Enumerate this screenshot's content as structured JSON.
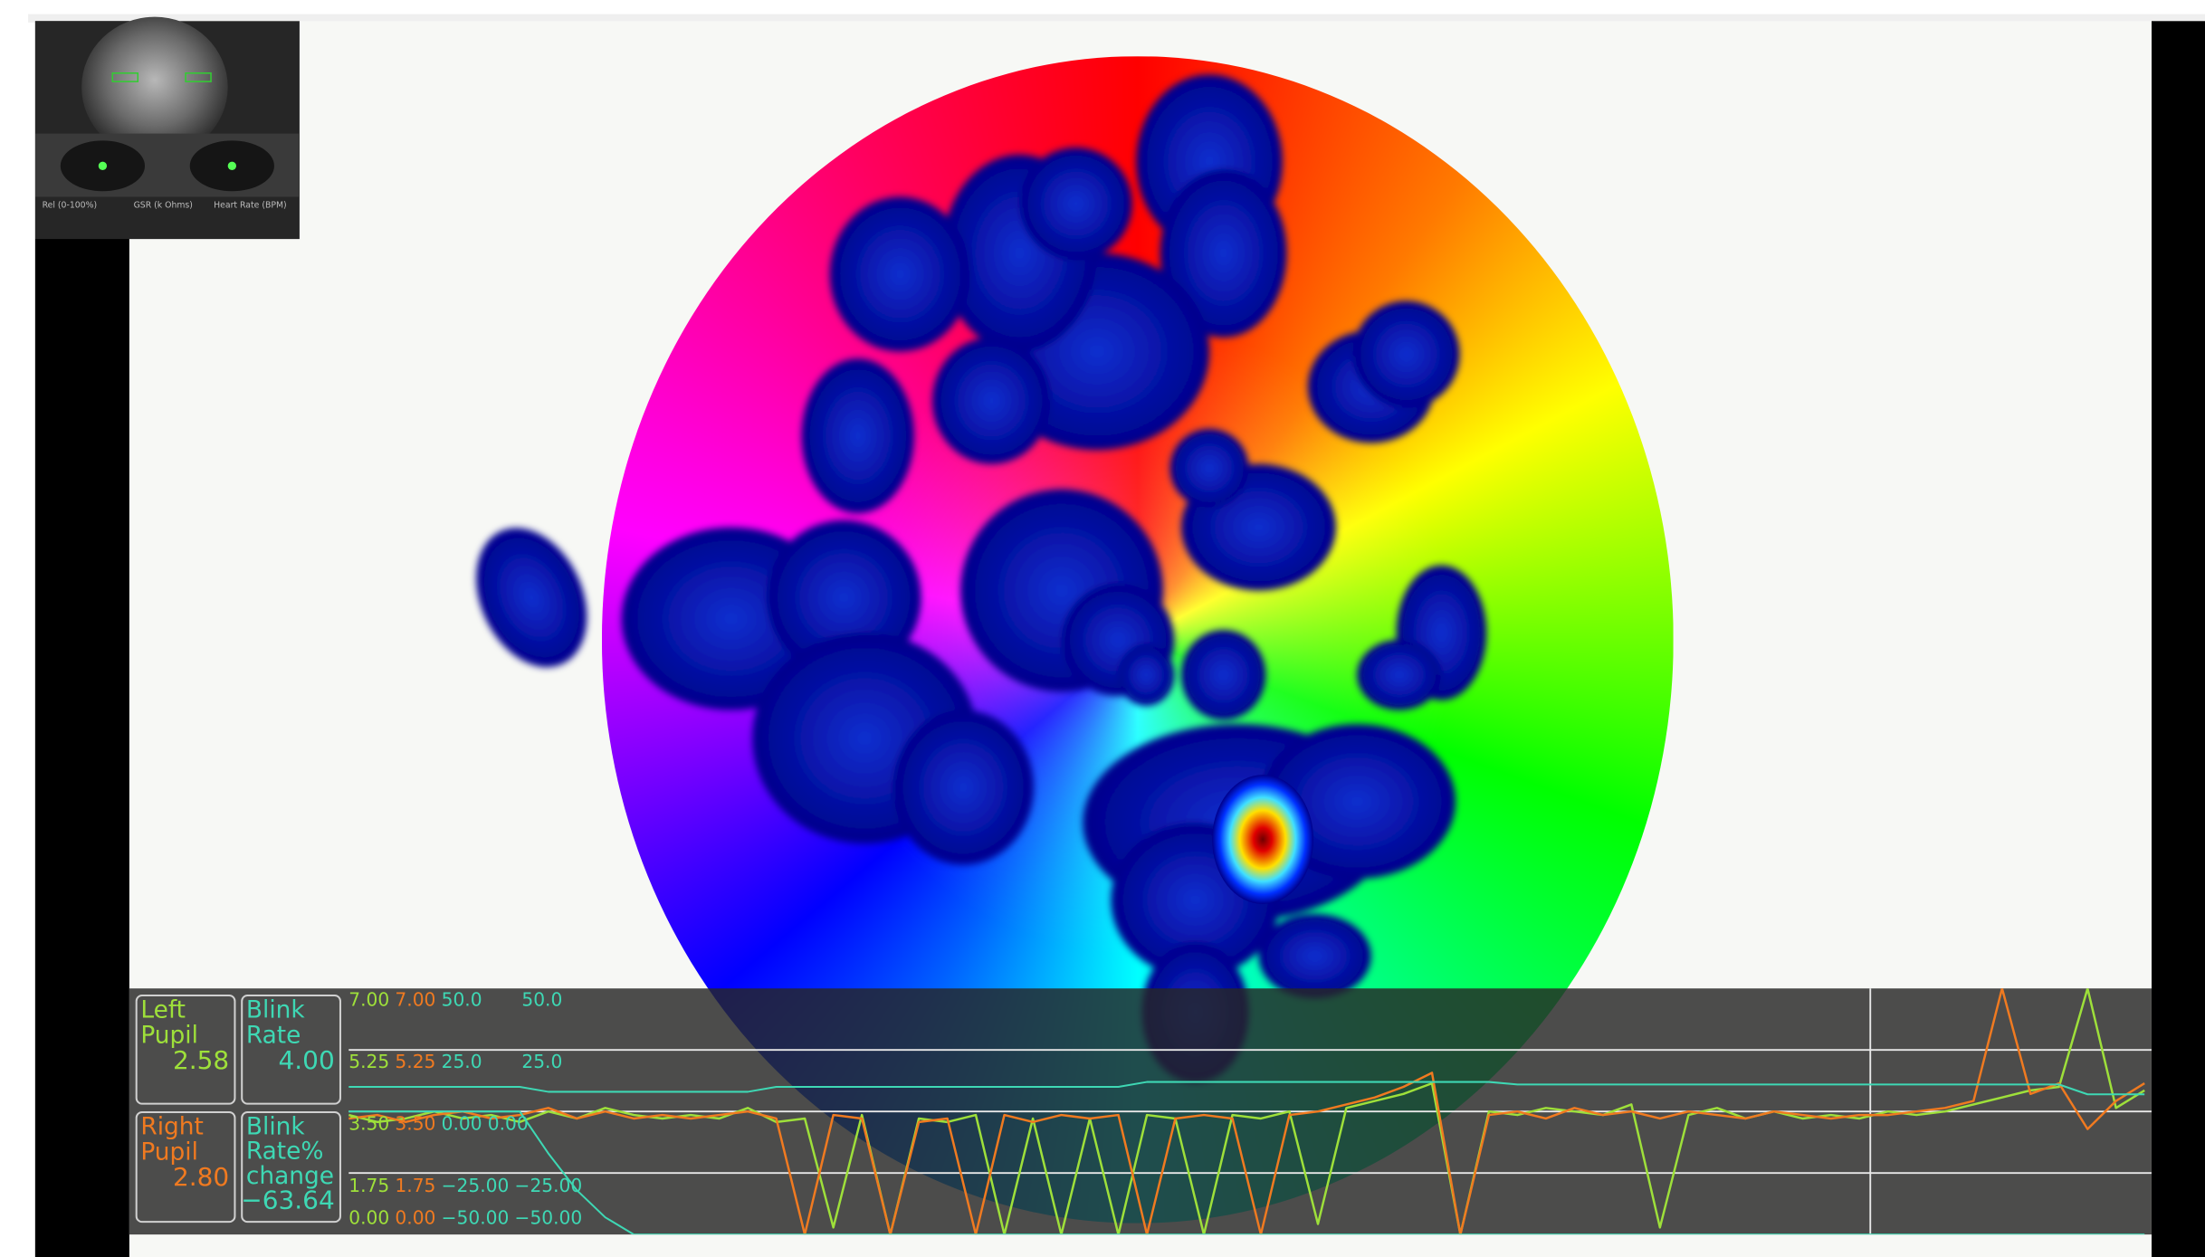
{
  "thumbnail": {
    "labels": [
      "Rel (0-100%)",
      "GSR (k Ohms)",
      "Heart Rate (BPM)"
    ]
  },
  "readouts": [
    {
      "lines": [
        "Left",
        "Pupil"
      ],
      "value": "2.58",
      "color": "#9ee03a"
    },
    {
      "lines": [
        "Blink",
        "Rate"
      ],
      "value": "4.00",
      "color": "#3ed8b4"
    },
    {
      "lines": [
        "Right",
        "Pupil"
      ],
      "value": "2.80",
      "color": "#f07a20"
    },
    {
      "lines": [
        "Blink",
        "Rate%",
        "change"
      ],
      "value": "−63.64",
      "color": "#3ed8b4"
    }
  ],
  "graph": {
    "ylim": [
      0,
      7
    ],
    "y2lim": [
      -50,
      50
    ],
    "yticks": [
      {
        "value": 7,
        "label": "7.00"
      },
      {
        "value": 5.25,
        "label": "5.25"
      },
      {
        "value": 3.5,
        "label": "3.50"
      },
      {
        "value": 1.75,
        "label": "1.75"
      },
      {
        "value": 0,
        "label": "0.00"
      }
    ],
    "y2ticks": [
      {
        "value": 50,
        "label": "50.0"
      },
      {
        "value": 25,
        "label": "25.0"
      },
      {
        "value": 0,
        "label": "0.00"
      },
      {
        "value": -25,
        "label": "−25.00"
      },
      {
        "value": -50,
        "label": "−50.00"
      }
    ],
    "series": [
      {
        "color": "#9ee03a",
        "axis": "y",
        "values": [
          3.4,
          3.2,
          3.3,
          3.5,
          3.3,
          3.4,
          3.2,
          3.5,
          3.3,
          3.6,
          3.4,
          3.3,
          3.4,
          3.3,
          3.6,
          3.2,
          3.3,
          0.2,
          3.4,
          0.0,
          3.3,
          3.2,
          3.4,
          0.0,
          3.3,
          0.0,
          3.3,
          0.0,
          3.4,
          3.3,
          0.0,
          3.4,
          3.3,
          3.5,
          0.3,
          3.6,
          3.8,
          4.0,
          4.3,
          0.0,
          3.5,
          3.4,
          3.6,
          3.5,
          3.4,
          3.7,
          0.2,
          3.4,
          3.6,
          3.3,
          3.5,
          3.3,
          3.4,
          3.3,
          3.5,
          3.4,
          3.5,
          3.7,
          3.9,
          4.1,
          4.2,
          7.0,
          3.6,
          4.1
        ]
      },
      {
        "color": "#f07a20",
        "axis": "y",
        "values": [
          3.3,
          3.4,
          3.2,
          3.4,
          3.5,
          3.3,
          3.4,
          3.6,
          3.3,
          3.5,
          3.3,
          3.4,
          3.3,
          3.4,
          3.5,
          3.3,
          0.0,
          3.4,
          3.3,
          0.0,
          3.2,
          3.3,
          0.0,
          3.4,
          3.2,
          3.4,
          3.3,
          3.4,
          0.0,
          3.3,
          3.4,
          3.3,
          0.0,
          3.4,
          3.5,
          3.7,
          3.9,
          4.2,
          4.6,
          0.0,
          3.4,
          3.5,
          3.3,
          3.6,
          3.4,
          3.5,
          3.3,
          3.5,
          3.4,
          3.3,
          3.5,
          3.4,
          3.3,
          3.4,
          3.4,
          3.5,
          3.6,
          3.8,
          7.0,
          4.0,
          4.3,
          3.0,
          3.8,
          4.3
        ]
      },
      {
        "color": "#3ed8b4",
        "axis": "y2",
        "values": [
          10,
          10,
          10,
          10,
          10,
          10,
          10,
          8,
          8,
          8,
          8,
          8,
          8,
          8,
          8,
          10,
          10,
          10,
          10,
          10,
          10,
          10,
          10,
          10,
          10,
          10,
          10,
          10,
          12,
          12,
          12,
          12,
          12,
          12,
          12,
          12,
          12,
          12,
          12,
          12,
          12,
          11,
          11,
          11,
          11,
          11,
          11,
          11,
          11,
          11,
          11,
          11,
          11,
          11,
          11,
          11,
          11,
          11,
          11,
          11,
          11,
          7,
          7,
          7
        ]
      },
      {
        "color": "#3ed8b4",
        "axis": "y2",
        "values": [
          0,
          0,
          0,
          0,
          0,
          0,
          0,
          -17,
          -32,
          -43,
          -50,
          -50,
          -50,
          -50,
          -50,
          -50,
          -50,
          -50,
          -50,
          -50,
          -50,
          -50,
          -50,
          -50,
          -50,
          -50,
          -50,
          -50,
          -50,
          -50,
          -50,
          -50,
          -50,
          -50,
          -50,
          -50,
          -50,
          -50,
          -50,
          -50,
          -50,
          -50,
          -50,
          -50,
          -50,
          -50,
          -50,
          -50,
          -50,
          -50,
          -50,
          -50,
          -50,
          -50,
          -50,
          -50,
          -50,
          -50,
          -50,
          -50,
          -50,
          -50,
          -50,
          -50
        ]
      }
    ]
  }
}
